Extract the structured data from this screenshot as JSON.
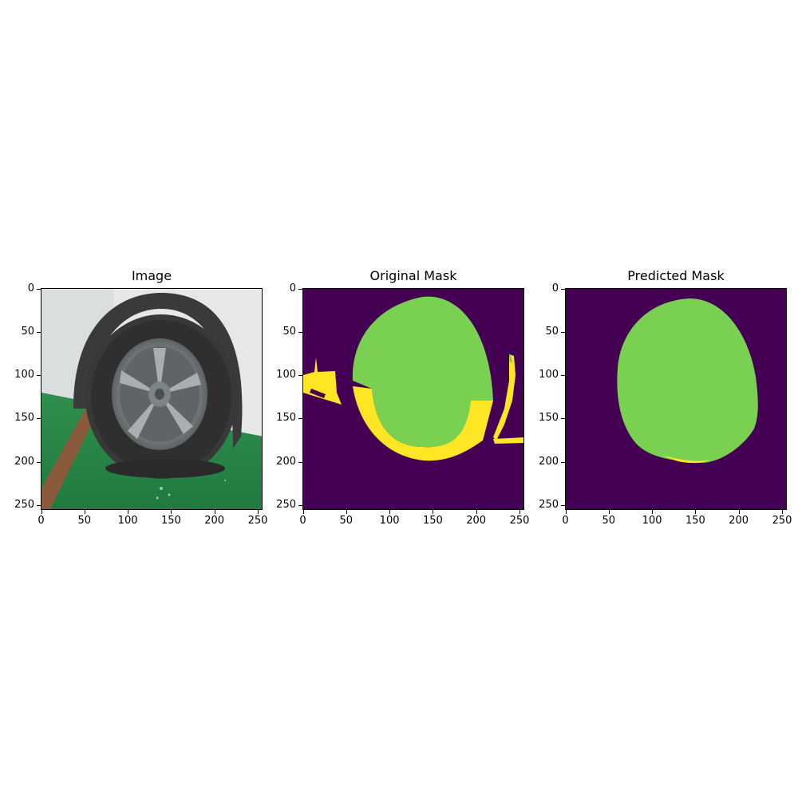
{
  "panels": [
    {
      "title": "Image"
    },
    {
      "title": "Original Mask"
    },
    {
      "title": "Predicted Mask"
    }
  ],
  "axes": {
    "y_ticks": [
      "0",
      "50",
      "100",
      "150",
      "200",
      "250"
    ],
    "x_ticks": [
      "0",
      "50",
      "100",
      "150",
      "200",
      "250"
    ]
  },
  "colors": {
    "mask_background": "#440154",
    "mask_class_1": "#7ad151",
    "mask_class_2": "#fde725"
  }
}
